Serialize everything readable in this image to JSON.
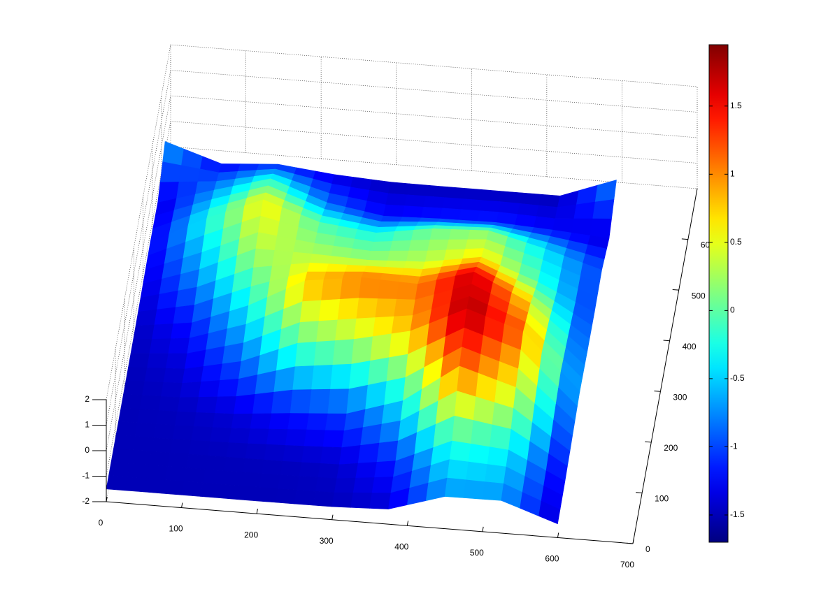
{
  "chart_data": {
    "type": "surface",
    "x": [
      0,
      75,
      150,
      225,
      300,
      375,
      450,
      525,
      600
    ],
    "y": [
      0,
      80,
      160,
      240,
      320,
      400,
      480,
      560,
      640
    ],
    "z": [
      [
        -1.5,
        -1.5,
        -1.5,
        -1.5,
        -1.49,
        -1.41,
        -0.74,
        -0.72,
        -1.46
      ],
      [
        -1.5,
        -1.5,
        -1.49,
        -1.48,
        -1.43,
        -1.11,
        -0.15,
        -0.33,
        -1.38
      ],
      [
        -1.5,
        -1.48,
        -1.39,
        -1.19,
        -1.03,
        -0.34,
        1.19,
        0.53,
        -1.2
      ],
      [
        -1.5,
        -1.39,
        -0.92,
        -0.03,
        0.3,
        0.8,
        1.85,
        1.13,
        -1.04
      ],
      [
        -1.47,
        -1.17,
        -0.32,
        0.83,
        1.13,
        1.05,
        1.7,
        0.65,
        -1.1
      ],
      [
        -1.41,
        -0.67,
        0.32,
        0.29,
        0.22,
        0.33,
        0.69,
        -0.11,
        -1.12
      ],
      [
        -1.35,
        -0.25,
        0.65,
        -0.06,
        -0.3,
        0.04,
        0.14,
        -0.4,
        -1.05
      ],
      [
        -1.41,
        -0.74,
        -0.12,
        -0.88,
        -1.23,
        -1.16,
        -1.13,
        -1.25,
        -1.4
      ],
      [
        -0.6,
        -1.3,
        -1.14,
        -1.37,
        -1.49,
        -1.5,
        -1.5,
        -1.5,
        -0.7
      ]
    ],
    "xlim": [
      0,
      700
    ],
    "xticks": [
      0,
      100,
      200,
      300,
      400,
      500,
      600,
      700
    ],
    "ylim": [
      0,
      700
    ],
    "yticks": [
      0,
      100,
      200,
      300,
      400,
      500,
      600
    ],
    "zlim": [
      -2,
      2
    ],
    "zticks": [
      -2,
      -1,
      0,
      1,
      2
    ],
    "clim": [
      -1.7,
      1.95
    ],
    "cticks": [
      -1.5,
      -1,
      -0.5,
      0,
      0.5,
      1,
      1.5
    ],
    "colormap": "jet",
    "grid": true
  }
}
